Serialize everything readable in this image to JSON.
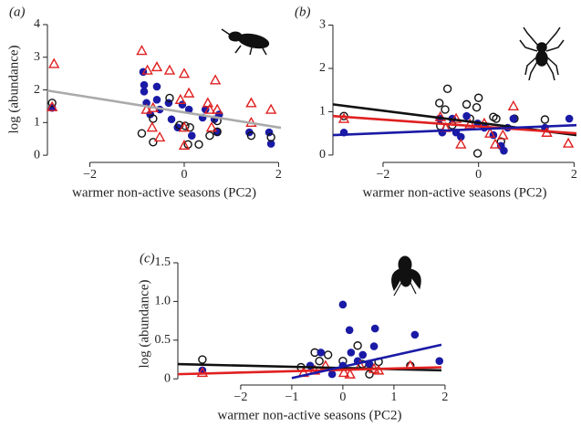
{
  "chart_data": [
    {
      "type": "scatter",
      "panel_label": "(a)",
      "x_label": "warmer non-active seasons (PC2)",
      "y_label": "log (abundance)",
      "xlim": [
        -2.9,
        2.05
      ],
      "ylim": [
        -0.22,
        4.25
      ],
      "xticks": [
        {
          "value": -2,
          "label": "−2"
        },
        0,
        2
      ],
      "yticks": [
        0,
        1,
        2,
        3,
        4
      ],
      "series": [
        {
          "marker": "circle",
          "color": "#1a1aa6",
          "x": [
            -0.87,
            -0.85,
            -0.85,
            -0.8,
            -0.58,
            -0.58,
            -0.72,
            -0.52,
            -0.33,
            -0.27,
            -0.04,
            0.1,
            0.16,
            0.39,
            0.45,
            0.64,
            0.74,
            0.7,
            1.38,
            1.8,
            1.84,
            -2.8,
            -0.14
          ],
          "y": [
            2.55,
            2.15,
            1.95,
            1.6,
            2.1,
            1.7,
            1.25,
            1.4,
            1.6,
            1.1,
            1.55,
            1.4,
            0.6,
            1.15,
            1.4,
            1.1,
            1.25,
            0.7,
            0.7,
            0.7,
            0.35,
            1.45,
            0.85
          ]
        },
        {
          "marker": "circle-open",
          "color": "#111111",
          "x": [
            -2.8,
            -0.9,
            -0.66,
            -0.66,
            -0.31,
            -0.1,
            0.02,
            0.08,
            0.31,
            0.54,
            0.7,
            0.7,
            1.42,
            1.84,
            0.12
          ],
          "y": [
            1.6,
            0.67,
            1.12,
            0.4,
            1.75,
            0.92,
            0.9,
            0.33,
            0.33,
            0.6,
            1.05,
            0.72,
            0.6,
            0.55,
            0.85
          ]
        },
        {
          "marker": "triangle-open",
          "color": "#e02020",
          "x": [
            -2.76,
            -2.8,
            -0.9,
            -0.78,
            -0.58,
            -0.31,
            0,
            0.1,
            -0.66,
            -0.8,
            -0.68,
            -0.52,
            -0.08,
            0,
            0,
            0.5,
            0.66,
            0.54,
            0.58,
            0.7,
            1.42,
            1.42,
            1.84
          ],
          "y": [
            2.8,
            1.48,
            3.2,
            2.6,
            2.7,
            2.6,
            2.5,
            1.9,
            1.45,
            1.4,
            0.85,
            0.55,
            1.7,
            0.85,
            0.3,
            1.6,
            2.3,
            1.4,
            0.85,
            1.4,
            1.6,
            1.0,
            1.4
          ]
        }
      ],
      "fits": [
        {
          "color": "#aaaaaa",
          "x": [
            -2.9,
            2.05
          ],
          "y": [
            1.98,
            0.84
          ]
        }
      ]
    },
    {
      "type": "scatter",
      "panel_label": "(b)",
      "x_label": "warmer non-active seasons (PC2)",
      "xlim": [
        -3.05,
        2.05
      ],
      "ylim": [
        -0.17,
        3.2
      ],
      "xticks": [
        {
          "value": -2,
          "label": "−2"
        },
        0,
        2
      ],
      "yticks": [
        0,
        1,
        2,
        3
      ],
      "series": [
        {
          "marker": "circle-open",
          "color": "#111111",
          "x": [
            -2.82,
            -0.82,
            -0.65,
            -0.7,
            -0.55,
            -0.8,
            -0.25,
            0,
            -0.04,
            0.31,
            0.37,
            0.47,
            -0.02,
            0.75,
            1.39,
            -0.18
          ],
          "y": [
            0.9,
            1.2,
            1.53,
            1.05,
            0.69,
            0.67,
            1.17,
            1.32,
            1.1,
            0.88,
            0.84,
            0.31,
            0.04,
            0.84,
            0.82,
            0.84
          ]
        },
        {
          "marker": "circle",
          "color": "#1a1aa6",
          "x": [
            -2.82,
            -0.82,
            -0.76,
            -0.55,
            -0.47,
            -0.37,
            -0.25,
            -0.02,
            0.12,
            0.31,
            0.47,
            0.53,
            0.61,
            0.73,
            1.39,
            1.9
          ],
          "y": [
            0.52,
            0.84,
            0.52,
            0.84,
            0.52,
            0.42,
            0.9,
            0.73,
            0.63,
            0.46,
            0.21,
            0.1,
            0.63,
            0.84,
            0.63,
            0.84
          ]
        },
        {
          "marker": "triangle-open",
          "color": "#e02020",
          "x": [
            -2.82,
            -0.8,
            -0.69,
            -0.47,
            -0.18,
            0.12,
            0.24,
            0.35,
            0.73,
            1.43,
            1.88,
            -0.37,
            0.51
          ],
          "y": [
            0.84,
            0.88,
            0.63,
            0.84,
            0.71,
            0.73,
            0.5,
            0.25,
            1.13,
            0.52,
            0.27,
            0.25,
            0.46
          ]
        }
      ],
      "fits": [
        {
          "color": "#111111",
          "x": [
            -3.05,
            2.05
          ],
          "y": [
            1.17,
            0.46
          ]
        },
        {
          "color": "#e02020",
          "x": [
            -3.05,
            2.05
          ],
          "y": [
            0.9,
            0.5
          ]
        },
        {
          "color": "#1a1aa6",
          "x": [
            -3.05,
            2.05
          ],
          "y": [
            0.46,
            0.69
          ]
        }
      ]
    },
    {
      "type": "scatter",
      "panel_label": "(c)",
      "x_label": "warmer non-active seasons (PC2)",
      "y_label": "log (abundance)",
      "xlim": [
        -3.23,
        1.93
      ],
      "ylim": [
        -0.08,
        1.5
      ],
      "xticks": [
        {
          "value": -2,
          "label": "−2"
        },
        {
          "value": -1,
          "label": "−1"
        },
        0,
        1,
        2
      ],
      "yticks": [
        0,
        0.5,
        {
          "value": 1,
          "label": "1.0"
        },
        1.5
      ],
      "series": [
        {
          "marker": "circle-open",
          "color": "#111111",
          "x": [
            -2.75,
            -0.82,
            -0.55,
            -0.46,
            -0.29,
            0,
            0.29,
            0.38,
            0.52,
            0.7,
            1.32
          ],
          "y": [
            0.25,
            0.15,
            0.34,
            0.23,
            0.31,
            0.23,
            0.43,
            0.19,
            0.06,
            0.22,
            0.17
          ]
        },
        {
          "marker": "circle",
          "color": "#1a1aa6",
          "x": [
            0,
            0.13,
            0.63,
            0.16,
            0.29,
            0.39,
            0.61,
            1.41,
            0,
            0.52,
            -0.64,
            -0.43,
            1.89,
            -2.75,
            -0.21
          ],
          "y": [
            0.96,
            0.63,
            0.65,
            0.34,
            0.23,
            0.31,
            0.42,
            0.57,
            0.17,
            0.19,
            0.17,
            0.34,
            0.23,
            0.11,
            0.06
          ]
        },
        {
          "marker": "triangle-open",
          "color": "#e02020",
          "x": [
            -2.75,
            -0.77,
            -0.55,
            -0.34,
            0.02,
            0.34,
            0.61,
            0.7,
            1.32,
            0.14
          ],
          "y": [
            0.08,
            0.08,
            0.11,
            0.17,
            0.08,
            0.17,
            0.13,
            0.11,
            0.17,
            0.06
          ]
        }
      ],
      "fits": [
        {
          "color": "#111111",
          "x": [
            -3.23,
            1.93
          ],
          "y": [
            0.19,
            0.11
          ]
        },
        {
          "color": "#e02020",
          "x": [
            -3.23,
            1.93
          ],
          "y": [
            0.06,
            0.15
          ]
        },
        {
          "color": "#1a1aa6",
          "x": [
            -1,
            1.93
          ],
          "y": [
            0.01,
            0.44
          ]
        }
      ]
    }
  ]
}
